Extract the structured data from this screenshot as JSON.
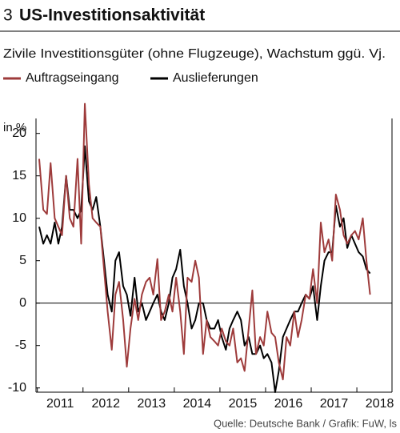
{
  "chart_data": {
    "type": "line",
    "number": "3",
    "title": "US-Investitionsaktivität",
    "subtitle": "Zivile Investitionsgüter (ohne Flugzeuge), Wachstum ggü. Vj.",
    "y_unit": "in %",
    "source": "Quelle: Deutsche Bank / Grafik: FuW, ls",
    "x": [
      2011.04,
      2011.13,
      2011.21,
      2011.29,
      2011.38,
      2011.46,
      2011.54,
      2011.63,
      2011.71,
      2011.79,
      2011.88,
      2011.96,
      2012.04,
      2012.13,
      2012.21,
      2012.29,
      2012.38,
      2012.46,
      2012.54,
      2012.63,
      2012.71,
      2012.79,
      2012.88,
      2012.96,
      2013.04,
      2013.13,
      2013.21,
      2013.29,
      2013.38,
      2013.46,
      2013.54,
      2013.63,
      2013.71,
      2013.79,
      2013.88,
      2013.96,
      2014.04,
      2014.13,
      2014.21,
      2014.29,
      2014.38,
      2014.46,
      2014.54,
      2014.63,
      2014.71,
      2014.79,
      2014.88,
      2014.96,
      2015.04,
      2015.13,
      2015.21,
      2015.29,
      2015.38,
      2015.46,
      2015.54,
      2015.63,
      2015.71,
      2015.79,
      2015.88,
      2015.96,
      2016.04,
      2016.13,
      2016.21,
      2016.29,
      2016.38,
      2016.46,
      2016.54,
      2016.63,
      2016.71,
      2016.79,
      2016.88,
      2016.96,
      2017.04,
      2017.13,
      2017.21,
      2017.29,
      2017.38,
      2017.46,
      2017.54,
      2017.63,
      2017.71,
      2017.79,
      2017.88,
      2017.96,
      2018.04,
      2018.13,
      2018.21,
      2018.29
    ],
    "series": [
      {
        "name": "Auftragseingang",
        "color": "#9e3b3b",
        "values": [
          17,
          11,
          10.5,
          16.5,
          10,
          9,
          8,
          15,
          10,
          9,
          17,
          7,
          23.5,
          14,
          10,
          9.5,
          9,
          4,
          -1,
          -5.5,
          1,
          2.5,
          -2,
          -7.5,
          -3,
          0.5,
          -2,
          1,
          2.5,
          3,
          1,
          5.2,
          -2,
          -1,
          1,
          -1,
          3,
          -1,
          -6,
          3,
          2.5,
          5,
          3,
          -6,
          -2,
          -4,
          -4.5,
          -5,
          -3,
          -4.5,
          -5,
          -3,
          -7,
          -6.5,
          -8,
          -3,
          1.5,
          -6,
          -4,
          -5,
          -1,
          -3.5,
          -4,
          -7,
          -9,
          -4,
          -5,
          -1,
          -4,
          -2,
          1,
          0.5,
          4,
          0,
          9.5,
          6,
          7.5,
          5,
          12.8,
          11,
          8,
          7,
          8,
          8.5,
          7.5,
          10,
          5,
          1
        ]
      },
      {
        "name": "Auslieferungen",
        "color": "#000000",
        "values": [
          9,
          7,
          8,
          7,
          9.5,
          7,
          9,
          15,
          11,
          11,
          10,
          11,
          18.5,
          12,
          11,
          12.5,
          9,
          5,
          1,
          -1,
          5,
          6,
          2,
          1,
          -1.5,
          3,
          -1,
          0,
          -2,
          -1,
          0,
          1,
          -1,
          -2,
          0,
          3,
          4,
          6.3,
          2,
          0,
          -3,
          -2,
          0,
          0,
          -2,
          -3,
          -3,
          -2,
          -4,
          -5.5,
          -3,
          -2,
          -1,
          -2,
          -5,
          -4,
          -6,
          -6,
          -5,
          -6.5,
          -6,
          -7,
          -10.5,
          -8,
          -4,
          -3,
          -2,
          -1,
          -1,
          0,
          1,
          0.5,
          2,
          -2,
          2,
          5,
          6,
          6,
          11.5,
          9,
          10,
          6.5,
          8,
          7,
          6,
          5.5,
          4,
          3.5
        ]
      }
    ],
    "xlim": [
      2010.97,
      2018.77
    ],
    "xticks": [
      {
        "value": 2011.5,
        "label": "2011"
      },
      {
        "value": 2012.5,
        "label": "2012"
      },
      {
        "value": 2013.5,
        "label": "2013"
      },
      {
        "value": 2014.5,
        "label": "2014"
      },
      {
        "value": 2015.5,
        "label": "2015"
      },
      {
        "value": 2016.5,
        "label": "2016"
      },
      {
        "value": 2017.5,
        "label": "2017"
      },
      {
        "value": 2018.5,
        "label": "2018"
      }
    ],
    "ylim": [
      -10.5,
      23.5
    ],
    "yticks": [
      -10,
      -5,
      0,
      5,
      10,
      15,
      20
    ]
  }
}
